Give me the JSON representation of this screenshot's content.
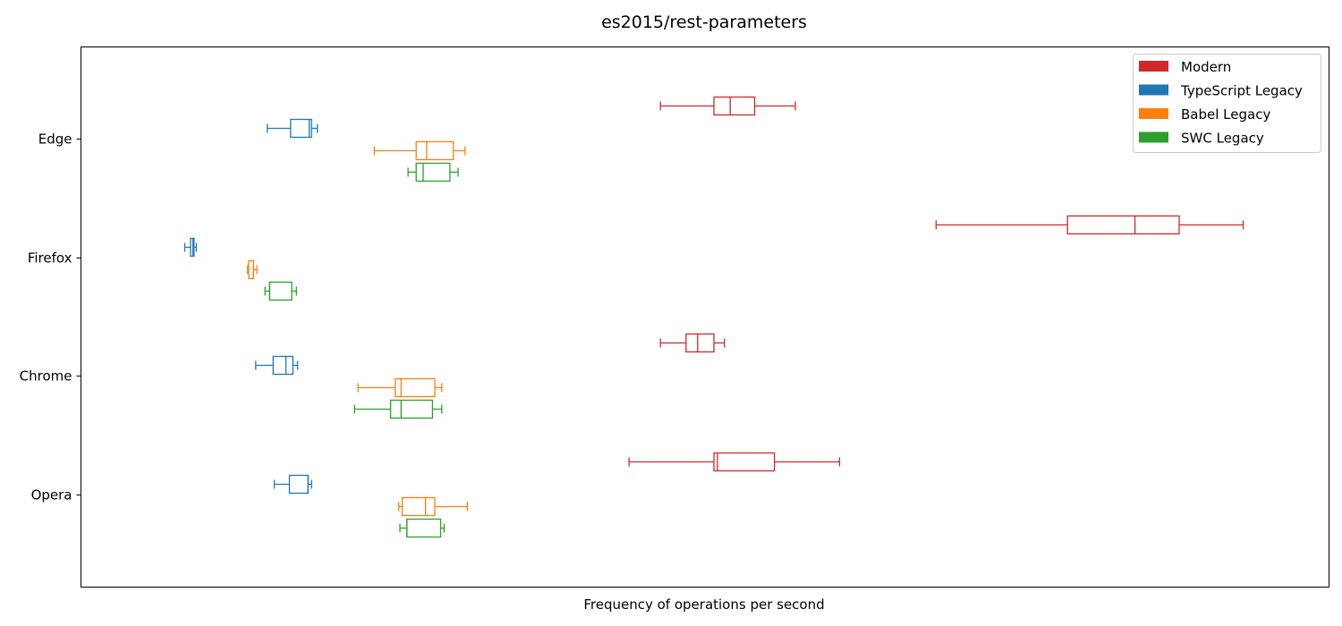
{
  "chart_data": {
    "type": "boxplot",
    "title": "es2015/rest-parameters",
    "xlabel": "Frequency of operations per second",
    "ylabel": "",
    "xlim": [
      0,
      1000
    ],
    "x_ticks_shown": false,
    "grid": false,
    "legend_position": "top-right",
    "categories": [
      "Edge",
      "Firefox",
      "Chrome",
      "Opera"
    ],
    "series": [
      {
        "name": "Modern",
        "color": "#d62728",
        "boxes": [
          {
            "category": "Edge",
            "whisker_low": 454,
            "q1": 500,
            "median": 514,
            "q3": 535,
            "whisker_high": 570
          },
          {
            "category": "Firefox",
            "whisker_low": 691,
            "q1": 804,
            "median": 862,
            "q3": 900,
            "whisker_high": 955
          },
          {
            "category": "Chrome",
            "whisker_low": 454,
            "q1": 476,
            "median": 486,
            "q3": 500,
            "whisker_high": 509
          },
          {
            "category": "Opera",
            "whisker_low": 427,
            "q1": 500,
            "median": 503,
            "q3": 552,
            "whisker_high": 608
          }
        ]
      },
      {
        "name": "TypeScript Legacy",
        "color": "#1f77b4",
        "boxes": [
          {
            "category": "Edge",
            "whisker_low": 116,
            "q1": 136,
            "median": 152,
            "q3": 154,
            "whisker_high": 159
          },
          {
            "category": "Firefox",
            "whisker_low": 45,
            "q1": 50,
            "median": 52,
            "q3": 53,
            "whisker_high": 55
          },
          {
            "category": "Chrome",
            "whisker_low": 106,
            "q1": 121,
            "median": 132,
            "q3": 138,
            "whisker_high": 142
          },
          {
            "category": "Opera",
            "whisker_low": 122,
            "q1": 135,
            "median": 151,
            "q3": 151,
            "whisker_high": 154
          }
        ]
      },
      {
        "name": "Babel Legacy",
        "color": "#ff7f0e",
        "boxes": [
          {
            "category": "Edge",
            "whisker_low": 208,
            "q1": 244,
            "median": 253,
            "q3": 276,
            "whisker_high": 286
          },
          {
            "category": "Firefox",
            "whisker_low": 99,
            "q1": 100,
            "median": 104,
            "q3": 104,
            "whisker_high": 107
          },
          {
            "category": "Chrome",
            "whisker_low": 194,
            "q1": 226,
            "median": 231,
            "q3": 260,
            "whisker_high": 266
          },
          {
            "category": "Opera",
            "whisker_low": 229,
            "q1": 232,
            "median": 252,
            "q3": 260,
            "whisker_high": 288
          }
        ]
      },
      {
        "name": "SWC Legacy",
        "color": "#2ca02c",
        "boxes": [
          {
            "category": "Edge",
            "whisker_low": 237,
            "q1": 244,
            "median": 250,
            "q3": 273,
            "whisker_high": 280
          },
          {
            "category": "Firefox",
            "whisker_low": 114,
            "q1": 118,
            "median": 118,
            "q3": 137,
            "whisker_high": 141
          },
          {
            "category": "Chrome",
            "whisker_low": 191,
            "q1": 222,
            "median": 231,
            "q3": 258,
            "whisker_high": 266
          },
          {
            "category": "Opera",
            "whisker_low": 230,
            "q1": 236,
            "median": 236,
            "q3": 265,
            "whisker_high": 268
          }
        ]
      }
    ]
  }
}
